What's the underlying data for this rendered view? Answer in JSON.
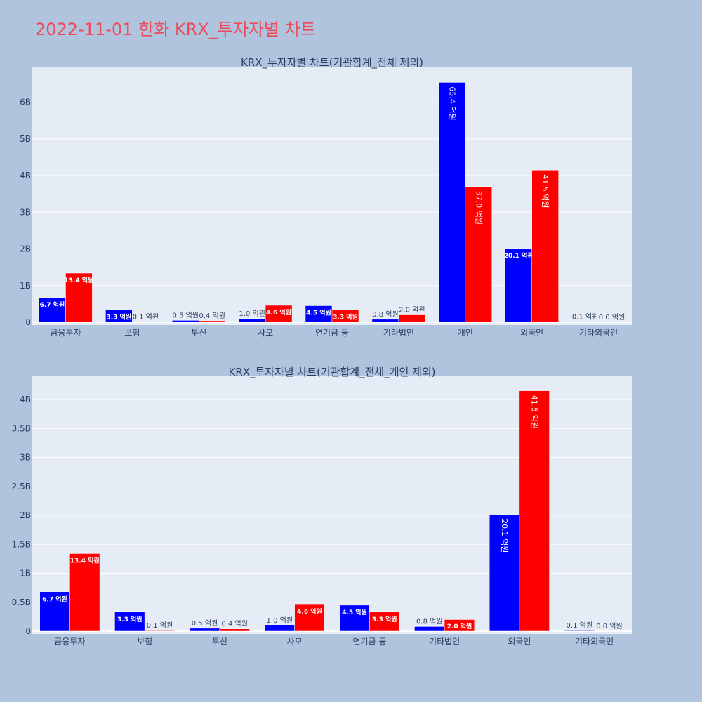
{
  "page": {
    "title": "2022-11-01 한화 KRX_투자자별 차트",
    "colors": {
      "background": "#b0c4de",
      "plot_bg": "#e5ecf6",
      "title": "#ef4a5a",
      "buy": "#0000ff",
      "sell": "#ff0000",
      "text": "#2a3f5f"
    }
  },
  "chart_data": [
    {
      "type": "bar",
      "title": "KRX_투자자별 차트(기관합계_전체 제외)",
      "categories": [
        "금융투자",
        "보험",
        "투신",
        "사모",
        "연기금 등",
        "기타법인",
        "개인",
        "외국인",
        "기타외국인"
      ],
      "series": [
        {
          "color": "#0000ff",
          "values": [
            670000000,
            330000000,
            50000000,
            100000000,
            450000000,
            80000000,
            6540000000,
            2010000000,
            10000000
          ],
          "labels": [
            "6.7 억원",
            "3.3 억원",
            "0.5 억원",
            "1.0 억원",
            "4.5 억원",
            "0.8 억원",
            "65.4 억원",
            "20.1 억원",
            "0.1 억원"
          ]
        },
        {
          "color": "#ff0000",
          "values": [
            1340000000,
            10000000,
            40000000,
            460000000,
            330000000,
            200000000,
            3700000000,
            4150000000,
            0
          ],
          "labels": [
            "13.4 억원",
            "0.1 억원",
            "0.4 억원",
            "4.6 억원",
            "3.3 억원",
            "2.0 억원",
            "37.0 억원",
            "41.5 억원",
            "0.0 억원"
          ]
        }
      ],
      "ylim": [
        0,
        6950000000
      ],
      "yticks": [
        0,
        1000000000,
        2000000000,
        3000000000,
        4000000000,
        5000000000,
        6000000000
      ],
      "ytick_labels": [
        "0",
        "1B",
        "2B",
        "3B",
        "4B",
        "5B",
        "6B"
      ],
      "grid": true
    },
    {
      "type": "bar",
      "title": "KRX_투자자별 차트(기관합계_전체_개인 제외)",
      "categories": [
        "금융투자",
        "보험",
        "투신",
        "사모",
        "연기금 등",
        "기타법인",
        "외국인",
        "기타외국인"
      ],
      "series": [
        {
          "color": "#0000ff",
          "values": [
            670000000,
            330000000,
            50000000,
            100000000,
            450000000,
            80000000,
            2010000000,
            10000000
          ],
          "labels": [
            "6.7 억원",
            "3.3 억원",
            "0.5 억원",
            "1.0 억원",
            "4.5 억원",
            "0.8 억원",
            "20.1 억원",
            "0.1 억원"
          ]
        },
        {
          "color": "#ff0000",
          "values": [
            1340000000,
            10000000,
            40000000,
            460000000,
            330000000,
            200000000,
            4150000000,
            0
          ],
          "labels": [
            "13.4 억원",
            "0.1 억원",
            "0.4 억원",
            "4.6 억원",
            "3.3 억원",
            "2.0 억원",
            "41.5 억원",
            "0.0 억원"
          ]
        }
      ],
      "ylim": [
        0,
        4400000000
      ],
      "yticks": [
        0,
        500000000,
        1000000000,
        1500000000,
        2000000000,
        2500000000,
        3000000000,
        3500000000,
        4000000000
      ],
      "ytick_labels": [
        "0",
        "0.5B",
        "1B",
        "1.5B",
        "2B",
        "2.5B",
        "3B",
        "3.5B",
        "4B"
      ],
      "grid": true
    }
  ]
}
